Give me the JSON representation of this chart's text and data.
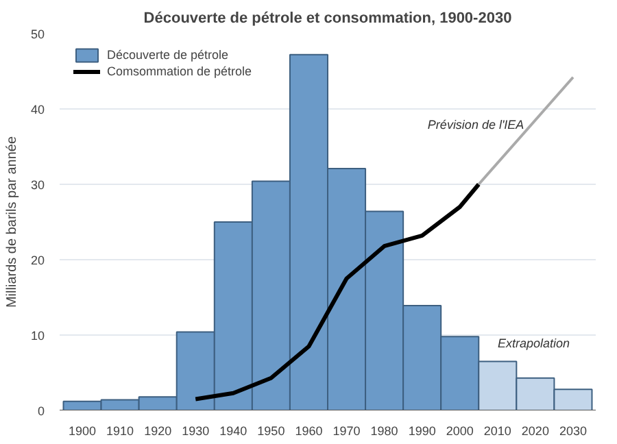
{
  "chart_data": {
    "type": "bar",
    "title": "Découverte de pétrole et consommation, 1900-2030",
    "ylabel": "Milliards de barils par année",
    "x": [
      1900,
      1910,
      1920,
      1930,
      1940,
      1950,
      1960,
      1970,
      1980,
      1990,
      2000,
      2010,
      2020,
      2030
    ],
    "series": [
      {
        "name": "Découverte de pétrole",
        "color": "#6b9ac8",
        "colors": [
          "#6b9ac8",
          "#6b9ac8",
          "#6b9ac8",
          "#6b9ac8",
          "#6b9ac8",
          "#6b9ac8",
          "#6b9ac8",
          "#6b9ac8",
          "#6b9ac8",
          "#6b9ac8",
          "#6b9ac8",
          "#c3d6ea",
          "#c3d6ea",
          "#c3d6ea"
        ],
        "values": [
          1.2,
          1.4,
          1.8,
          10.4,
          25,
          30.4,
          47.2,
          32.1,
          26.4,
          13.9,
          9.8,
          6.5,
          4.3,
          2.8
        ]
      },
      {
        "name": "Comsommation de pétrole",
        "type": "line",
        "color": "#000000",
        "x": [
          1930,
          1940,
          1950,
          1960,
          1970,
          1980,
          1990,
          2000,
          2005
        ],
        "values": [
          1.5,
          2.3,
          4.3,
          8.5,
          17.5,
          21.8,
          23.2,
          27,
          30
        ]
      },
      {
        "type": "line",
        "color": "#aaaaaa",
        "x": [
          2005,
          2030
        ],
        "values": [
          30,
          44.2
        ]
      }
    ],
    "annotations": [
      {
        "text": "Prévision de l'IEA",
        "x": 2017,
        "y": 37
      },
      "Extrapolation"
    ],
    "xlim": [
      1894,
      2036
    ],
    "ylim": [
      0,
      50
    ],
    "xticks": [
      1900,
      1910,
      1920,
      1930,
      1940,
      1950,
      1960,
      1970,
      1980,
      1990,
      2000,
      2010,
      2020,
      2030
    ],
    "yticks": [
      0,
      10,
      20,
      30,
      40,
      50
    ],
    "grid": "y",
    "legend": "top left"
  }
}
